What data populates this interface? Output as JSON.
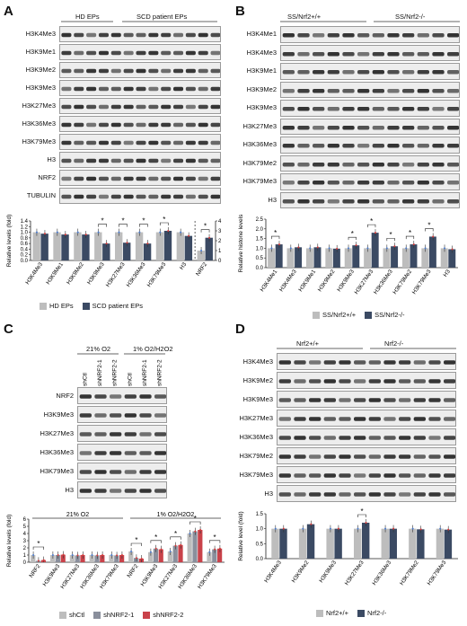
{
  "panels": {
    "A": {
      "letter": "A",
      "group_labels": [
        "HD EPs",
        "SCD patient EPs"
      ],
      "blot_rows": [
        "H3K4Me3",
        "H3K9Me1",
        "H3K9Me2",
        "H3K9Me3",
        "H3K27Me3",
        "H3K36Me3",
        "H3K79Me3",
        "H3",
        "NRF2",
        "TUBULIN"
      ],
      "ylabel": "Relative levels (fold)",
      "yticks_left": [
        "0.0",
        "0.2",
        "0.4",
        "0.6",
        "0.8",
        "1.0",
        "1.2",
        "1.4"
      ],
      "yticks_right": [
        "0",
        "1",
        "2",
        "3",
        "4"
      ],
      "legend": [
        "HD EPs",
        "SCD patient EPs"
      ]
    },
    "B": {
      "letter": "B",
      "group_labels": [
        "SS/Nrf2+/+",
        "SS/Nrf2-/-"
      ],
      "blot_rows": [
        "H3K4Me1",
        "H3K4Me3",
        "H3K9Me1",
        "H3K9Me2",
        "H3K9Me3",
        "H3K27Me3",
        "H3K36Me3",
        "H3K79Me2",
        "H3K79Me3",
        "H3"
      ],
      "ylabel": "Relative histone levels",
      "yticks": [
        "0.0",
        "0.5",
        "1.0",
        "1.5",
        "2.0",
        "2.5"
      ],
      "legend": [
        "SS/Nrf2+/+",
        "SS/Nrf2-/-"
      ]
    },
    "C": {
      "letter": "C",
      "group_labels": [
        "21% O2",
        "1% O2/H2O2"
      ],
      "lane_labels": [
        "shCtl",
        "shNRF2-1",
        "shNRF2-2",
        "shCtl",
        "shNRF2-1",
        "shNRF2-2"
      ],
      "blot_rows": [
        "NRF2",
        "H3K9Me3",
        "H3K27Me3",
        "H3K36Me3",
        "H3K79Me3",
        "H3"
      ],
      "chart_groups": [
        "21% O2",
        "1% O2/H2O2"
      ],
      "ylabel": "Relative levels (fold)",
      "yticks": [
        "0",
        "1",
        "2",
        "3",
        "4",
        "5",
        "6"
      ],
      "legend": [
        "shCtl",
        "shNRF2-1",
        "shNRF2-2"
      ]
    },
    "D": {
      "letter": "D",
      "group_labels": [
        "Nrf2+/+",
        "Nrf2-/-"
      ],
      "blot_rows": [
        "H3K4Me3",
        "H3K9Me2",
        "H3K9Me3",
        "H3K27Me3",
        "H3K36Me3",
        "H3K79Me2",
        "H3K79Me3",
        "H3"
      ],
      "ylabel": "Relative level (fold)",
      "yticks": [
        "0.0",
        "0.5",
        "1.0",
        "1.5"
      ],
      "legend": [
        "Nrf2+/+",
        "Nrf2-/-"
      ]
    }
  },
  "chart_data": [
    {
      "type": "bar",
      "panel": "A",
      "categories": [
        "H3K4Me3",
        "H3K9Me1",
        "H3K9Me2",
        "H3K9Me3",
        "H3K27Me3",
        "H3K36Me3",
        "H3K79Me3",
        "H3",
        "NRF2"
      ],
      "series": [
        {
          "name": "HD EPs",
          "values": [
            1.0,
            1.0,
            1.0,
            1.0,
            1.0,
            1.0,
            1.0,
            1.0,
            1.0
          ]
        },
        {
          "name": "SCD patient EPs",
          "values": [
            0.95,
            0.92,
            0.92,
            0.6,
            0.63,
            0.6,
            1.05,
            0.87,
            2.3
          ]
        }
      ],
      "ylabel": "Relative levels (fold)",
      "ylim": [
        0,
        1.4
      ],
      "ylim_right": [
        0,
        4
      ],
      "significance": [
        "",
        "",
        "",
        "*",
        "*",
        "*",
        "*",
        "",
        "*"
      ],
      "colors": [
        "#bdbdbd",
        "#3b4a63"
      ]
    },
    {
      "type": "bar",
      "panel": "B",
      "categories": [
        "H3K4Me1",
        "H3K4Me3",
        "H3K9Me1",
        "H3K9Me2",
        "H3K9Me3",
        "H3K27Me3",
        "H3K36Me3",
        "H3K79Me2",
        "H3K79Me3",
        "H3"
      ],
      "series": [
        {
          "name": "SS/Nrf2+/+",
          "values": [
            1.0,
            1.0,
            1.0,
            1.0,
            1.0,
            1.0,
            1.0,
            1.0,
            1.0,
            1.0
          ]
        },
        {
          "name": "SS/Nrf2-/-",
          "values": [
            1.2,
            1.05,
            1.05,
            0.98,
            1.15,
            1.8,
            1.1,
            1.2,
            1.6,
            0.95
          ]
        }
      ],
      "ylabel": "Relative histone levels",
      "ylim": [
        0,
        2.5
      ],
      "significance": [
        "*",
        "",
        "",
        "",
        "*",
        "*",
        "*",
        "*",
        "*",
        ""
      ],
      "colors": [
        "#bdbdbd",
        "#3b4a63"
      ]
    },
    {
      "type": "bar",
      "panel": "C",
      "categories": [
        "NRF2",
        "H3K9Me3",
        "H3K27Me3",
        "H3K36Me3",
        "H3K79Me3",
        "NRF2",
        "H3K9Me3",
        "H3K27Me3",
        "H3K36Me3",
        "H3K79Me3"
      ],
      "series": [
        {
          "name": "shCtl",
          "values": [
            1.0,
            1.0,
            1.0,
            1.0,
            1.0,
            1.5,
            1.4,
            1.5,
            4.0,
            1.4
          ]
        },
        {
          "name": "shNRF2-1",
          "values": [
            0.2,
            1.0,
            0.95,
            0.95,
            0.95,
            0.6,
            1.9,
            2.3,
            4.3,
            1.8
          ]
        },
        {
          "name": "shNRF2-2",
          "values": [
            0.3,
            1.05,
            1.0,
            1.0,
            1.0,
            0.5,
            1.8,
            2.4,
            4.5,
            1.9
          ]
        }
      ],
      "ylabel": "Relative levels (fold)",
      "ylim": [
        0,
        6
      ],
      "significance": [
        "*",
        "",
        "",
        "",
        "",
        "*",
        "*",
        "*",
        "*",
        "*"
      ],
      "colors": [
        "#bdbdbd",
        "#8a8f9c",
        "#c9424a"
      ]
    },
    {
      "type": "bar",
      "panel": "D",
      "categories": [
        "H3K4Me3",
        "H3K9Me2",
        "H3K9Me3",
        "H3K27Me3",
        "H3K36Me3",
        "H3K79Me2",
        "H3K79Me3"
      ],
      "series": [
        {
          "name": "Nrf2+/+",
          "values": [
            1.0,
            1.0,
            1.0,
            1.0,
            1.0,
            1.0,
            1.0
          ]
        },
        {
          "name": "Nrf2-/-",
          "values": [
            1.0,
            1.15,
            1.0,
            1.2,
            1.0,
            0.98,
            0.97
          ]
        }
      ],
      "ylabel": "Relative level (fold)",
      "ylim": [
        0,
        1.5
      ],
      "significance": [
        "",
        "",
        "",
        "*",
        "",
        "",
        ""
      ],
      "colors": [
        "#bdbdbd",
        "#3b4a63"
      ]
    }
  ]
}
